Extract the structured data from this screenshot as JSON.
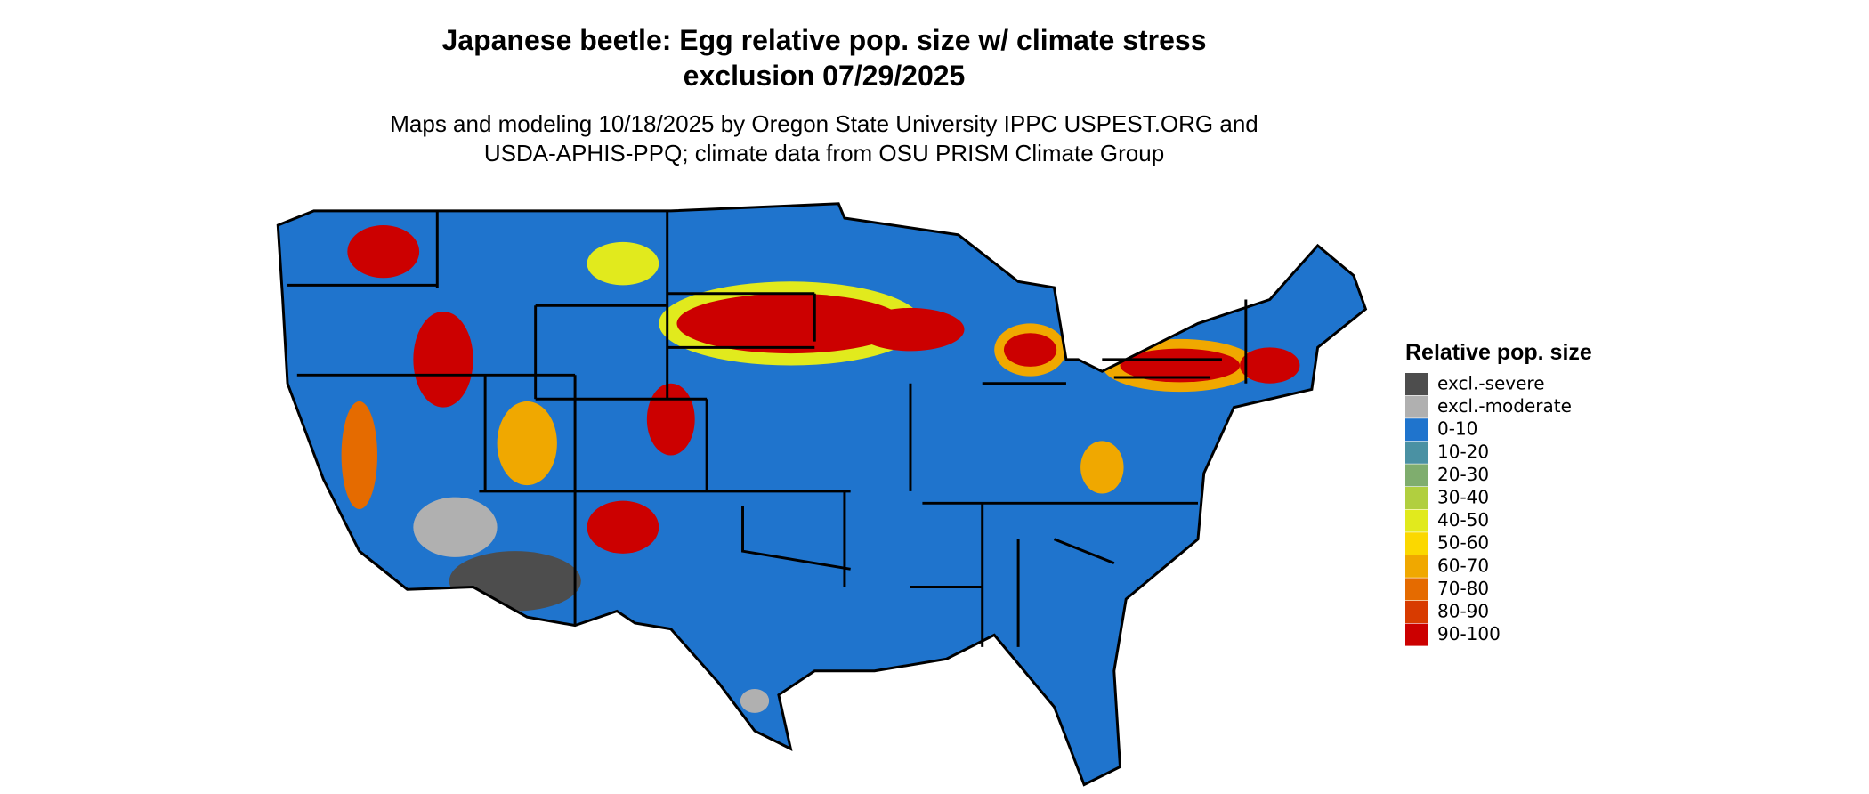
{
  "header": {
    "title_line1": "Japanese beetle: Egg relative pop. size w/ climate stress",
    "title_line2": "exclusion 07/29/2025",
    "subtitle_line1": "Maps and modeling 10/18/2025 by Oregon State University IPPC USPEST.ORG and",
    "subtitle_line2": "USDA-APHIS-PPQ; climate data from OSU PRISM Climate Group"
  },
  "legend": {
    "title": "Relative pop. size",
    "items": [
      {
        "label": "excl.-severe",
        "color": "#4d4d4d"
      },
      {
        "label": "excl.-moderate",
        "color": "#b0b0b0"
      },
      {
        "label": "0-10",
        "color": "#1f74cd"
      },
      {
        "label": "10-20",
        "color": "#4a91a3"
      },
      {
        "label": "20-30",
        "color": "#7fad6e"
      },
      {
        "label": "30-40",
        "color": "#b1cf3f"
      },
      {
        "label": "40-50",
        "color": "#e1ea1d"
      },
      {
        "label": "50-60",
        "color": "#fbd800"
      },
      {
        "label": "60-70",
        "color": "#f0a800"
      },
      {
        "label": "70-80",
        "color": "#e56b00"
      },
      {
        "label": "80-90",
        "color": "#d83b00"
      },
      {
        "label": "90-100",
        "color": "#cc0000"
      }
    ]
  }
}
